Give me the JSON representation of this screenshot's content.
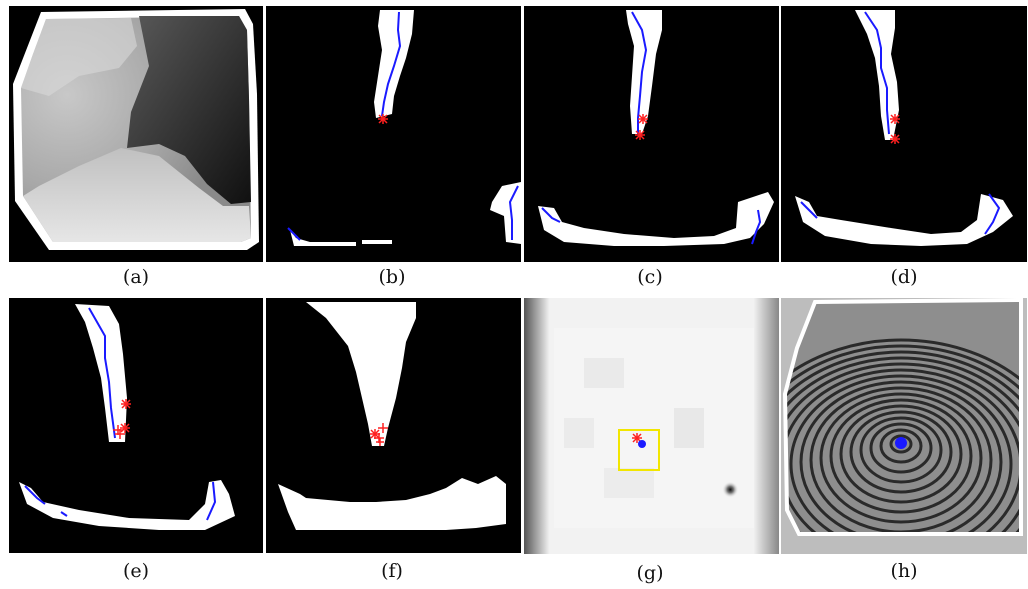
{
  "captions": {
    "a": "(a)",
    "b": "(b)",
    "c": "(c)",
    "d": "(d)",
    "e": "(e)",
    "f": "(f)",
    "g": "(g)",
    "h": "(h)"
  },
  "colors": {
    "background_panels": "#000000",
    "region": "#ffffff",
    "path_line": "#1a1aff",
    "star_marker": "#ff2020",
    "core_point": "#1a1aff",
    "box": "#f2e600"
  }
}
